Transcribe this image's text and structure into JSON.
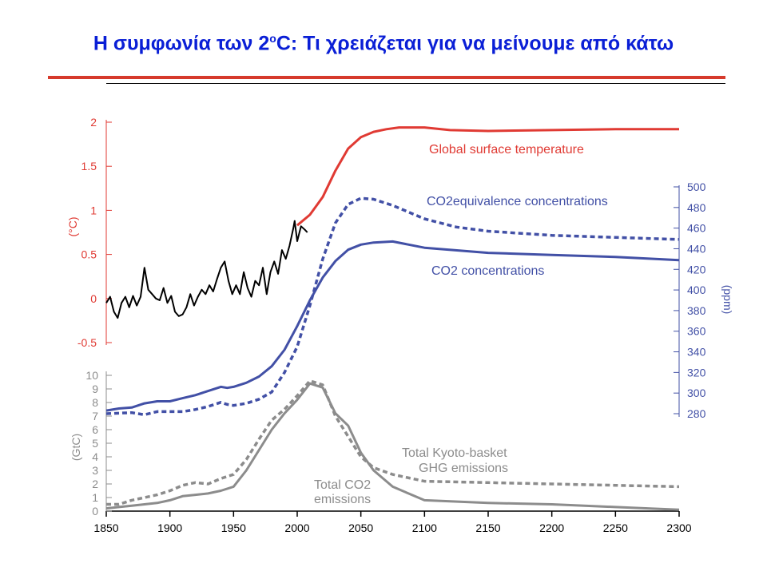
{
  "slide": {
    "title_main": "Η συμφωνία των 2",
    "title_sup": "o",
    "title_rest": "C: Τι χρειάζεται για να μείνουμε από κάτω"
  },
  "colors": {
    "title": "#0a1fd6",
    "rule": "#d63a2c",
    "temperature": "#e03a33",
    "concentration": "#4250a6",
    "emissions": "#8c8c8c",
    "observed": "#000000"
  },
  "chart_data": {
    "type": "line",
    "x_axis": {
      "ticks": [
        "1850",
        "1900",
        "1950",
        "2000",
        "2050",
        "2100",
        "2150",
        "2200",
        "2250",
        "2300"
      ],
      "range": [
        1850,
        2300
      ]
    },
    "axes": {
      "temperature": {
        "label": "(°C)",
        "range": [
          -0.5,
          2
        ],
        "ticks": [
          "2",
          "1.5",
          "1",
          "0.5",
          "0",
          "-0.5"
        ],
        "side": "left-top"
      },
      "concentration": {
        "label": "(ppm)",
        "range": [
          280,
          500
        ],
        "ticks": [
          "500",
          "480",
          "460",
          "440",
          "420",
          "400",
          "380",
          "360",
          "340",
          "320",
          "300",
          "280"
        ],
        "side": "right"
      },
      "emissions": {
        "label": "(GtC)",
        "range": [
          0,
          10
        ],
        "ticks": [
          "10",
          "9",
          "8",
          "7",
          "6",
          "5",
          "4",
          "3",
          "2",
          "1",
          "0"
        ],
        "side": "left-bottom"
      }
    },
    "series": [
      {
        "name": "Global surface temperature",
        "axis": "temperature",
        "style": "solid",
        "points": [
          [
            2000,
            0.83
          ],
          [
            2010,
            0.95
          ],
          [
            2020,
            1.15
          ],
          [
            2030,
            1.45
          ],
          [
            2040,
            1.7
          ],
          [
            2050,
            1.83
          ],
          [
            2060,
            1.89
          ],
          [
            2070,
            1.92
          ],
          [
            2080,
            1.94
          ],
          [
            2100,
            1.94
          ],
          [
            2120,
            1.91
          ],
          [
            2150,
            1.9
          ],
          [
            2200,
            1.91
          ],
          [
            2250,
            1.92
          ],
          [
            2300,
            1.92
          ]
        ]
      },
      {
        "name": "CO2equivalence concentrations",
        "axis": "concentration",
        "style": "dashed",
        "points": [
          [
            1850,
            280
          ],
          [
            1870,
            281
          ],
          [
            1880,
            279
          ],
          [
            1890,
            282
          ],
          [
            1900,
            282
          ],
          [
            1910,
            282
          ],
          [
            1920,
            284
          ],
          [
            1930,
            287
          ],
          [
            1940,
            291
          ],
          [
            1945,
            289
          ],
          [
            1950,
            288
          ],
          [
            1960,
            290
          ],
          [
            1970,
            294
          ],
          [
            1980,
            301
          ],
          [
            1990,
            320
          ],
          [
            2000,
            345
          ],
          [
            2010,
            385
          ],
          [
            2020,
            430
          ],
          [
            2030,
            465
          ],
          [
            2040,
            483
          ],
          [
            2050,
            489
          ],
          [
            2060,
            488
          ],
          [
            2075,
            482
          ],
          [
            2100,
            469
          ],
          [
            2125,
            461
          ],
          [
            2150,
            457
          ],
          [
            2175,
            455
          ],
          [
            2200,
            453
          ],
          [
            2225,
            452
          ],
          [
            2250,
            451
          ],
          [
            2300,
            449
          ]
        ]
      },
      {
        "name": "CO2 concentrations",
        "axis": "concentration",
        "style": "solid",
        "points": [
          [
            1850,
            283
          ],
          [
            1860,
            285
          ],
          [
            1870,
            286
          ],
          [
            1880,
            290
          ],
          [
            1890,
            292
          ],
          [
            1900,
            292
          ],
          [
            1910,
            295
          ],
          [
            1920,
            298
          ],
          [
            1930,
            302
          ],
          [
            1940,
            306
          ],
          [
            1945,
            305
          ],
          [
            1950,
            306
          ],
          [
            1960,
            310
          ],
          [
            1970,
            316
          ],
          [
            1980,
            326
          ],
          [
            1990,
            342
          ],
          [
            2000,
            365
          ],
          [
            2010,
            390
          ],
          [
            2020,
            412
          ],
          [
            2030,
            428
          ],
          [
            2040,
            439
          ],
          [
            2050,
            444
          ],
          [
            2060,
            446
          ],
          [
            2075,
            447
          ],
          [
            2100,
            441
          ],
          [
            2150,
            436
          ],
          [
            2200,
            434
          ],
          [
            2250,
            432
          ],
          [
            2300,
            429
          ]
        ]
      },
      {
        "name": "Total Kyoto-basket GHG emissions",
        "axis": "emissions",
        "style": "dashed",
        "points": [
          [
            1850,
            0.5
          ],
          [
            1860,
            0.5
          ],
          [
            1870,
            0.8
          ],
          [
            1880,
            1.0
          ],
          [
            1890,
            1.2
          ],
          [
            1900,
            1.5
          ],
          [
            1910,
            1.9
          ],
          [
            1920,
            2.1
          ],
          [
            1930,
            2.0
          ],
          [
            1940,
            2.4
          ],
          [
            1950,
            2.7
          ],
          [
            1960,
            3.8
          ],
          [
            1970,
            5.3
          ],
          [
            1980,
            6.7
          ],
          [
            1990,
            7.5
          ],
          [
            2000,
            8.5
          ],
          [
            2010,
            9.6
          ],
          [
            2020,
            9.3
          ],
          [
            2030,
            7.0
          ],
          [
            2040,
            5.5
          ],
          [
            2050,
            4.0
          ],
          [
            2060,
            3.2
          ],
          [
            2075,
            2.7
          ],
          [
            2100,
            2.2
          ],
          [
            2150,
            2.1
          ],
          [
            2200,
            2.0
          ],
          [
            2250,
            1.9
          ],
          [
            2300,
            1.8
          ]
        ]
      },
      {
        "name": "Total CO2 emissions",
        "axis": "emissions",
        "style": "solid",
        "points": [
          [
            1850,
            0.2
          ],
          [
            1860,
            0.3
          ],
          [
            1870,
            0.4
          ],
          [
            1880,
            0.5
          ],
          [
            1890,
            0.6
          ],
          [
            1900,
            0.8
          ],
          [
            1910,
            1.1
          ],
          [
            1920,
            1.2
          ],
          [
            1930,
            1.3
          ],
          [
            1940,
            1.5
          ],
          [
            1950,
            1.8
          ],
          [
            1960,
            3.0
          ],
          [
            1970,
            4.5
          ],
          [
            1980,
            6.0
          ],
          [
            1990,
            7.2
          ],
          [
            2000,
            8.2
          ],
          [
            2010,
            9.4
          ],
          [
            2020,
            9.1
          ],
          [
            2030,
            7.2
          ],
          [
            2040,
            6.3
          ],
          [
            2050,
            4.3
          ],
          [
            2060,
            3.0
          ],
          [
            2075,
            1.8
          ],
          [
            2100,
            0.8
          ],
          [
            2150,
            0.6
          ],
          [
            2200,
            0.5
          ],
          [
            2250,
            0.3
          ],
          [
            2300,
            0.1
          ]
        ]
      },
      {
        "name": "Observed temperature",
        "axis": "temperature",
        "style": "solid",
        "points": [
          [
            1850,
            -0.05
          ],
          [
            1853,
            0.02
          ],
          [
            1856,
            -0.15
          ],
          [
            1859,
            -0.22
          ],
          [
            1862,
            -0.05
          ],
          [
            1865,
            0.02
          ],
          [
            1868,
            -0.1
          ],
          [
            1871,
            0.03
          ],
          [
            1874,
            -0.08
          ],
          [
            1877,
            0.02
          ],
          [
            1880,
            0.35
          ],
          [
            1883,
            0.1
          ],
          [
            1886,
            0.05
          ],
          [
            1889,
            0.0
          ],
          [
            1892,
            -0.02
          ],
          [
            1895,
            0.12
          ],
          [
            1898,
            -0.05
          ],
          [
            1901,
            0.03
          ],
          [
            1904,
            -0.15
          ],
          [
            1907,
            -0.2
          ],
          [
            1910,
            -0.18
          ],
          [
            1913,
            -0.1
          ],
          [
            1916,
            0.05
          ],
          [
            1919,
            -0.08
          ],
          [
            1922,
            0.02
          ],
          [
            1925,
            0.1
          ],
          [
            1928,
            0.05
          ],
          [
            1931,
            0.15
          ],
          [
            1934,
            0.08
          ],
          [
            1937,
            0.22
          ],
          [
            1940,
            0.35
          ],
          [
            1943,
            0.42
          ],
          [
            1946,
            0.2
          ],
          [
            1949,
            0.05
          ],
          [
            1952,
            0.15
          ],
          [
            1955,
            0.05
          ],
          [
            1958,
            0.3
          ],
          [
            1961,
            0.12
          ],
          [
            1964,
            0.02
          ],
          [
            1967,
            0.2
          ],
          [
            1970,
            0.15
          ],
          [
            1973,
            0.35
          ],
          [
            1976,
            0.05
          ],
          [
            1979,
            0.3
          ],
          [
            1982,
            0.42
          ],
          [
            1985,
            0.28
          ],
          [
            1988,
            0.55
          ],
          [
            1991,
            0.45
          ],
          [
            1994,
            0.6
          ],
          [
            1997,
            0.8
          ],
          [
            1998,
            0.88
          ],
          [
            2000,
            0.65
          ],
          [
            2003,
            0.82
          ],
          [
            2006,
            0.78
          ],
          [
            2008,
            0.75
          ]
        ]
      }
    ],
    "annotations": [
      {
        "text": "Global surface temperature",
        "color_key": "temperature"
      },
      {
        "text": "CO2equivalence concentrations",
        "color_key": "concentration"
      },
      {
        "text": "CO2 concentrations",
        "color_key": "concentration"
      },
      {
        "text": "Total Kyoto-basket",
        "color_key": "emissions"
      },
      {
        "text": "GHG emissions",
        "color_key": "emissions"
      },
      {
        "text": "Total CO2",
        "color_key": "emissions"
      },
      {
        "text": "emissions",
        "color_key": "emissions"
      }
    ]
  }
}
